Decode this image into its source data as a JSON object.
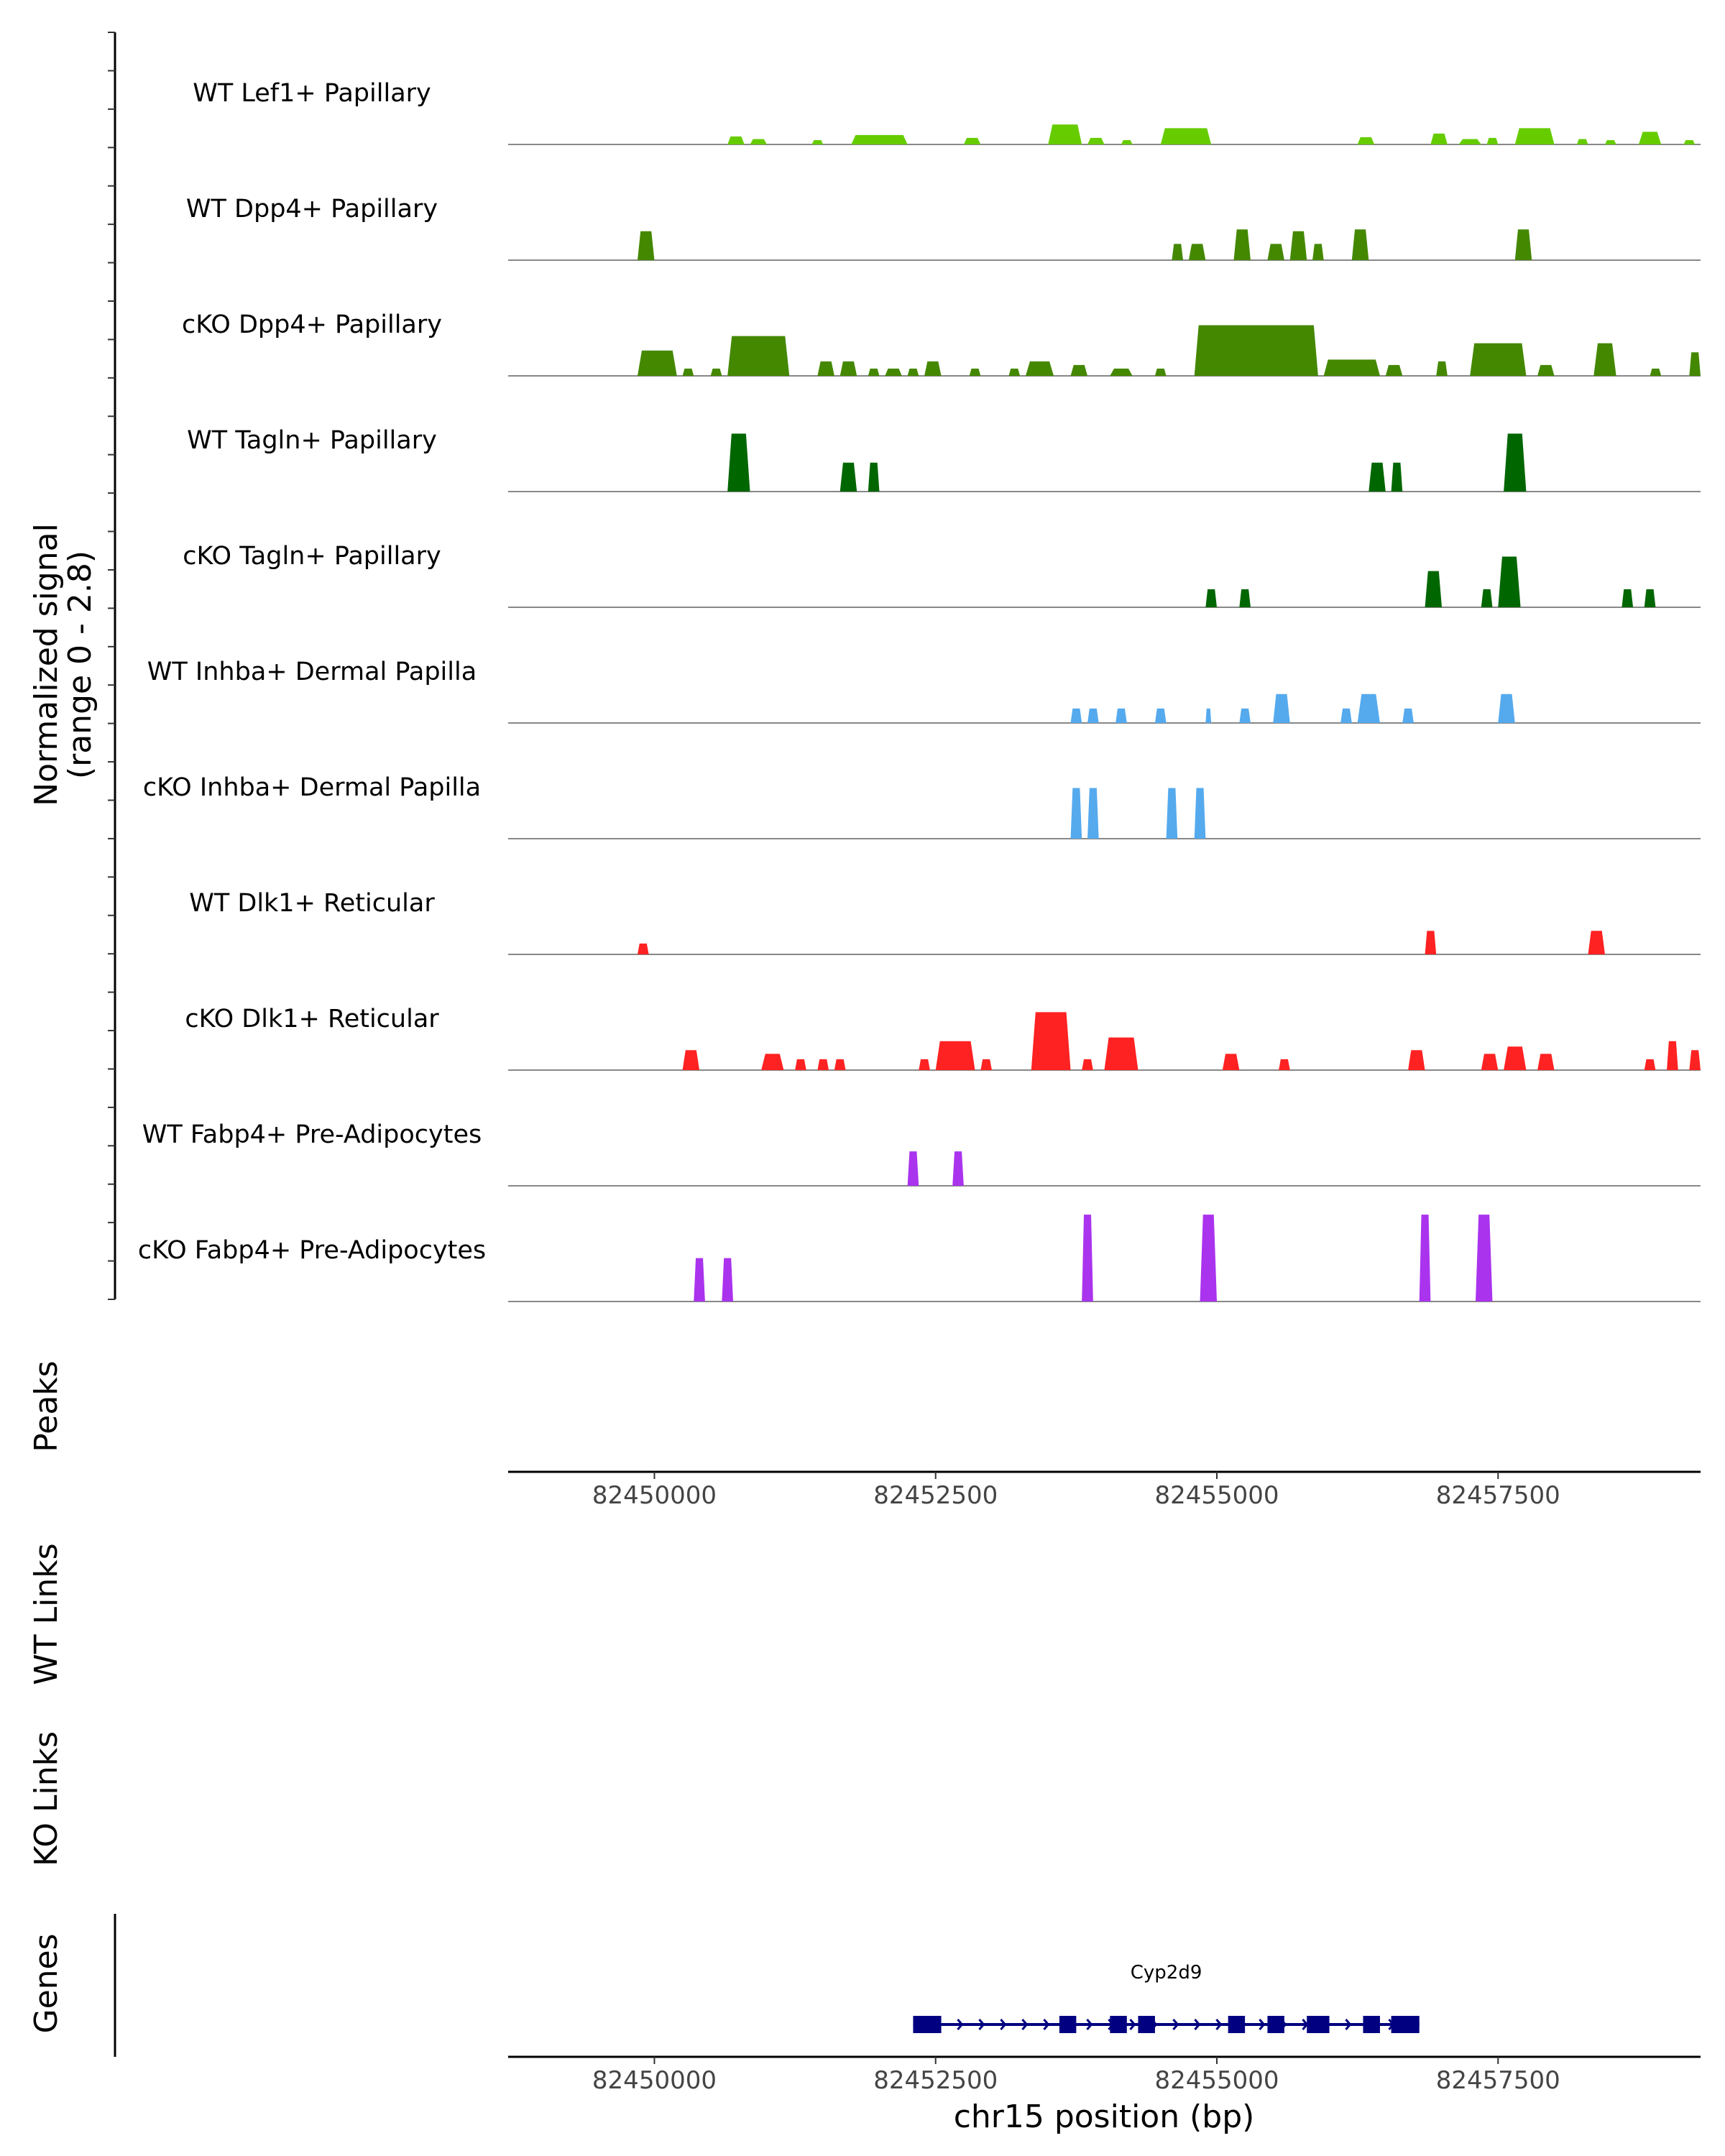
{
  "chart_data": {
    "type": "area",
    "genome_region": "chr15",
    "x_axis_label": "chr15 position (bp)",
    "x_range": [
      82448700,
      82459300
    ],
    "x_ticks": [
      82450000,
      82452500,
      82455000,
      82457500
    ],
    "x_tick_labels": [
      "82450000",
      "82452500",
      "82455000",
      "82457500"
    ],
    "y_axis_label_line1": "Normalized signal",
    "y_axis_label_line2": "(range 0 - 2.8)",
    "y_range": [
      0,
      2.8
    ],
    "track_labels": {
      "peaks": "Peaks",
      "wt_links": "WT Links",
      "ko_links": "KO Links",
      "genes": "Genes"
    },
    "tracks": [
      {
        "name": "WT Lef1+ Papillary",
        "color": "#66CC00",
        "peaks": [
          [
            82450650,
            82450800,
            0.22
          ],
          [
            82450850,
            82451000,
            0.15
          ],
          [
            82451400,
            82451500,
            0.12
          ],
          [
            82451750,
            82452250,
            0.26
          ],
          [
            82452750,
            82452900,
            0.18
          ],
          [
            82453500,
            82453800,
            0.55
          ],
          [
            82453850,
            82454000,
            0.18
          ],
          [
            82454150,
            82454250,
            0.12
          ],
          [
            82454500,
            82454950,
            0.45
          ],
          [
            82456250,
            82456400,
            0.2
          ],
          [
            82456900,
            82457050,
            0.3
          ],
          [
            82457150,
            82457350,
            0.15
          ],
          [
            82457400,
            82457500,
            0.18
          ],
          [
            82457650,
            82458000,
            0.45
          ],
          [
            82458200,
            82458300,
            0.15
          ],
          [
            82458450,
            82458550,
            0.12
          ],
          [
            82458750,
            82458950,
            0.35
          ],
          [
            82459150,
            82459250,
            0.12
          ]
        ]
      },
      {
        "name": "WT Dpp4+ Papillary",
        "color": "#448800",
        "peaks": [
          [
            82449850,
            82450000,
            0.8
          ],
          [
            82454600,
            82454700,
            0.45
          ],
          [
            82454750,
            82454900,
            0.45
          ],
          [
            82455150,
            82455300,
            0.85
          ],
          [
            82455450,
            82455600,
            0.45
          ],
          [
            82455650,
            82455800,
            0.8
          ],
          [
            82455850,
            82455950,
            0.45
          ],
          [
            82456200,
            82456350,
            0.85
          ],
          [
            82457650,
            82457800,
            0.85
          ]
        ]
      },
      {
        "name": "cKO Dpp4+ Papillary",
        "color": "#448800",
        "peaks": [
          [
            82449850,
            82450200,
            0.7
          ],
          [
            82450250,
            82450350,
            0.2
          ],
          [
            82450500,
            82450600,
            0.2
          ],
          [
            82450650,
            82451200,
            1.1
          ],
          [
            82451450,
            82451600,
            0.4
          ],
          [
            82451650,
            82451800,
            0.4
          ],
          [
            82451900,
            82452000,
            0.2
          ],
          [
            82452050,
            82452200,
            0.2
          ],
          [
            82452250,
            82452350,
            0.2
          ],
          [
            82452400,
            82452550,
            0.4
          ],
          [
            82452800,
            82452900,
            0.2
          ],
          [
            82453150,
            82453250,
            0.2
          ],
          [
            82453300,
            82453550,
            0.4
          ],
          [
            82453700,
            82453850,
            0.3
          ],
          [
            82454050,
            82454250,
            0.2
          ],
          [
            82454450,
            82454550,
            0.2
          ],
          [
            82454800,
            82455900,
            1.4
          ],
          [
            82455950,
            82456450,
            0.45
          ],
          [
            82456500,
            82456650,
            0.3
          ],
          [
            82456950,
            82457050,
            0.4
          ],
          [
            82457250,
            82457750,
            0.9
          ],
          [
            82457850,
            82458000,
            0.3
          ],
          [
            82458350,
            82458550,
            0.9
          ],
          [
            82458850,
            82458950,
            0.2
          ],
          [
            82459200,
            82459300,
            0.65
          ]
        ]
      },
      {
        "name": "WT Tagln+ Papillary",
        "color": "#006600",
        "peaks": [
          [
            82450650,
            82450850,
            1.6
          ],
          [
            82451650,
            82451800,
            0.8
          ],
          [
            82451900,
            82452000,
            0.8
          ],
          [
            82456350,
            82456500,
            0.8
          ],
          [
            82456550,
            82456650,
            0.8
          ],
          [
            82457550,
            82457750,
            1.6
          ]
        ]
      },
      {
        "name": "cKO Tagln+ Papillary",
        "color": "#006600",
        "peaks": [
          [
            82454900,
            82455000,
            0.5
          ],
          [
            82455200,
            82455300,
            0.5
          ],
          [
            82456850,
            82457000,
            1.0
          ],
          [
            82457350,
            82457450,
            0.5
          ],
          [
            82457500,
            82457700,
            1.4
          ],
          [
            82458600,
            82458700,
            0.5
          ],
          [
            82458800,
            82458900,
            0.5
          ]
        ]
      },
      {
        "name": "WT Inhba+ Dermal Papilla",
        "color": "#55AAEE",
        "peaks": [
          [
            82453700,
            82453800,
            0.4
          ],
          [
            82453850,
            82453950,
            0.4
          ],
          [
            82454100,
            82454200,
            0.4
          ],
          [
            82454450,
            82454550,
            0.4
          ],
          [
            82454900,
            82454950,
            0.4
          ],
          [
            82455200,
            82455300,
            0.4
          ],
          [
            82455500,
            82455650,
            0.8
          ],
          [
            82456100,
            82456200,
            0.4
          ],
          [
            82456250,
            82456450,
            0.8
          ],
          [
            82456650,
            82456750,
            0.4
          ],
          [
            82457500,
            82457650,
            0.8
          ]
        ]
      },
      {
        "name": "cKO Inhba+ Dermal Papilla",
        "color": "#55AAEE",
        "peaks": [
          [
            82453700,
            82453800,
            1.4
          ],
          [
            82453850,
            82453950,
            1.4
          ],
          [
            82454550,
            82454650,
            1.4
          ],
          [
            82454800,
            82454900,
            1.4
          ]
        ]
      },
      {
        "name": "WT Dlk1+ Reticular",
        "color": "#FF2222",
        "peaks": [
          [
            82449850,
            82449950,
            0.3
          ],
          [
            82456850,
            82456950,
            0.65
          ],
          [
            82458300,
            82458450,
            0.65
          ]
        ]
      },
      {
        "name": "cKO Dlk1+ Reticular",
        "color": "#FF2222",
        "peaks": [
          [
            82450250,
            82450400,
            0.55
          ],
          [
            82450950,
            82451150,
            0.45
          ],
          [
            82451250,
            82451350,
            0.3
          ],
          [
            82451450,
            82451550,
            0.3
          ],
          [
            82451600,
            82451700,
            0.3
          ],
          [
            82452350,
            82452450,
            0.3
          ],
          [
            82452500,
            82452850,
            0.8
          ],
          [
            82452900,
            82453000,
            0.3
          ],
          [
            82453350,
            82453700,
            1.6
          ],
          [
            82453800,
            82453900,
            0.3
          ],
          [
            82454000,
            82454300,
            0.9
          ],
          [
            82455050,
            82455200,
            0.45
          ],
          [
            82455550,
            82455650,
            0.3
          ],
          [
            82456700,
            82456850,
            0.55
          ],
          [
            82457350,
            82457500,
            0.45
          ],
          [
            82457550,
            82457750,
            0.65
          ],
          [
            82457850,
            82458000,
            0.45
          ],
          [
            82458800,
            82458900,
            0.3
          ],
          [
            82459000,
            82459100,
            0.8
          ],
          [
            82459200,
            82459300,
            0.55
          ]
        ]
      },
      {
        "name": "WT Fabp4+ Pre-Adipocytes",
        "color": "#AA33EE",
        "peaks": [
          [
            82452250,
            82452350,
            0.95
          ],
          [
            82452650,
            82452750,
            0.95
          ]
        ]
      },
      {
        "name": "cKO Fabp4+ Pre-Adipocytes",
        "color": "#AA33EE",
        "peaks": [
          [
            82450350,
            82450450,
            1.2
          ],
          [
            82450600,
            82450700,
            1.2
          ],
          [
            82453800,
            82453900,
            2.4
          ],
          [
            82454850,
            82455000,
            2.4
          ],
          [
            82456800,
            82456900,
            2.4
          ],
          [
            82457300,
            82457450,
            2.4
          ]
        ]
      }
    ],
    "genes": [
      {
        "name": "Cyp2d9",
        "start": 82452300,
        "end": 82456800,
        "strand": "+",
        "exons": [
          [
            82452300,
            82452550
          ],
          [
            82453600,
            82453750
          ],
          [
            82454050,
            82454200
          ],
          [
            82454300,
            82454450
          ],
          [
            82455100,
            82455250
          ],
          [
            82455450,
            82455600
          ],
          [
            82455800,
            82456000
          ],
          [
            82456300,
            82456450
          ],
          [
            82456550,
            82456800
          ]
        ]
      }
    ]
  }
}
